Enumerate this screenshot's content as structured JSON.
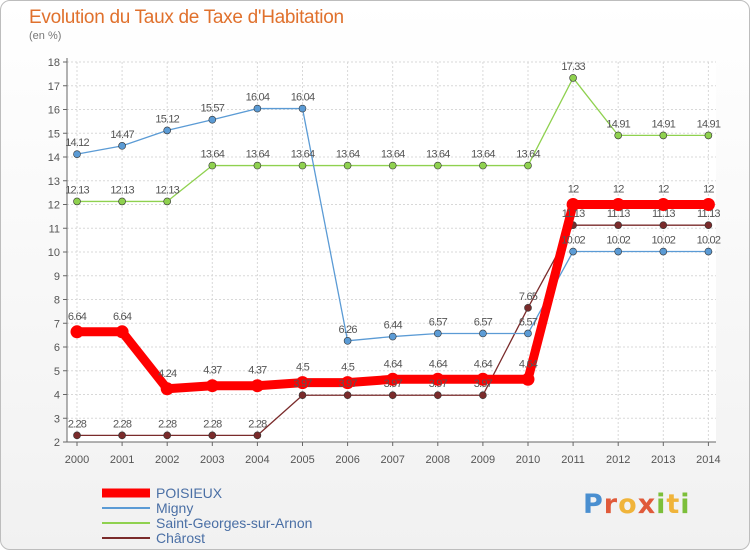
{
  "header": {
    "title": "Evolution du Taux de Taxe d'Habitation",
    "subtitle": "(en %)"
  },
  "logo": {
    "text": "Proxiti"
  },
  "chart_data": {
    "type": "line",
    "title": "Evolution du Taux de Taxe d'Habitation",
    "subtitle": "(en %)",
    "xlabel": "",
    "ylabel": "",
    "x": [
      "2000",
      "2001",
      "2002",
      "2003",
      "2004",
      "2005",
      "2006",
      "2007",
      "2008",
      "2009",
      "2010",
      "2011",
      "2012",
      "2013",
      "2014"
    ],
    "ylim": [
      2,
      18
    ],
    "yticks": [
      "2",
      "3",
      "4",
      "5",
      "6",
      "7",
      "8",
      "9",
      "10",
      "11",
      "12",
      "13",
      "14",
      "15",
      "16",
      "17",
      "18"
    ],
    "grid": true,
    "legend_position": "bottom-left",
    "series": [
      {
        "name": "POISIEUX",
        "color": "#ff0000",
        "values": [
          6.64,
          6.64,
          4.24,
          4.37,
          4.37,
          4.5,
          4.5,
          4.64,
          4.64,
          4.64,
          4.64,
          12,
          12,
          12,
          12
        ],
        "labels": [
          "6.64",
          "6.64",
          "4.24",
          "4.37",
          "4.37",
          "4.5",
          "4.5",
          "4.64",
          "4.64",
          "4.64",
          "4.64",
          "12",
          "12",
          "12",
          "12"
        ]
      },
      {
        "name": "Migny",
        "color": "#5b9bd5",
        "values": [
          14.12,
          14.47,
          15.12,
          15.57,
          16.04,
          16.04,
          6.26,
          6.44,
          6.57,
          6.57,
          6.57,
          10.02,
          10.02,
          10.02,
          10.02
        ],
        "labels": [
          "14.12",
          "14.47",
          "15.12",
          "15.57",
          "16.04",
          "16.04",
          "6.26",
          "6.44",
          "6.57",
          "6.57",
          "6.57",
          "10.02",
          "10.02",
          "10.02",
          "10.02"
        ]
      },
      {
        "name": "Saint-Georges-sur-Arnon",
        "color": "#8fd14f",
        "values": [
          12.13,
          12.13,
          12.13,
          13.64,
          13.64,
          13.64,
          13.64,
          13.64,
          13.64,
          13.64,
          13.64,
          17.33,
          14.91,
          14.91,
          14.91
        ],
        "labels": [
          "12.13",
          "12.13",
          "12.13",
          "13.64",
          "13.64",
          "13.64",
          "13.64",
          "13.64",
          "13.64",
          "13.64",
          "13.64",
          "17.33",
          "14.91",
          "14.91",
          "14.91"
        ]
      },
      {
        "name": "Chârost",
        "color": "#7a2b2b",
        "values": [
          2.28,
          2.28,
          2.28,
          2.28,
          2.28,
          3.97,
          3.97,
          3.97,
          3.97,
          3.97,
          7.65,
          11.13,
          11.13,
          11.13,
          11.13
        ],
        "labels": [
          "2.28",
          "2.28",
          "2.28",
          "2.28",
          "2.28",
          "3.97",
          "3.97",
          "3.97",
          "3.97",
          "3.97",
          "7.65",
          "11.13",
          "11.13",
          "11.13",
          "11.13"
        ]
      }
    ]
  }
}
